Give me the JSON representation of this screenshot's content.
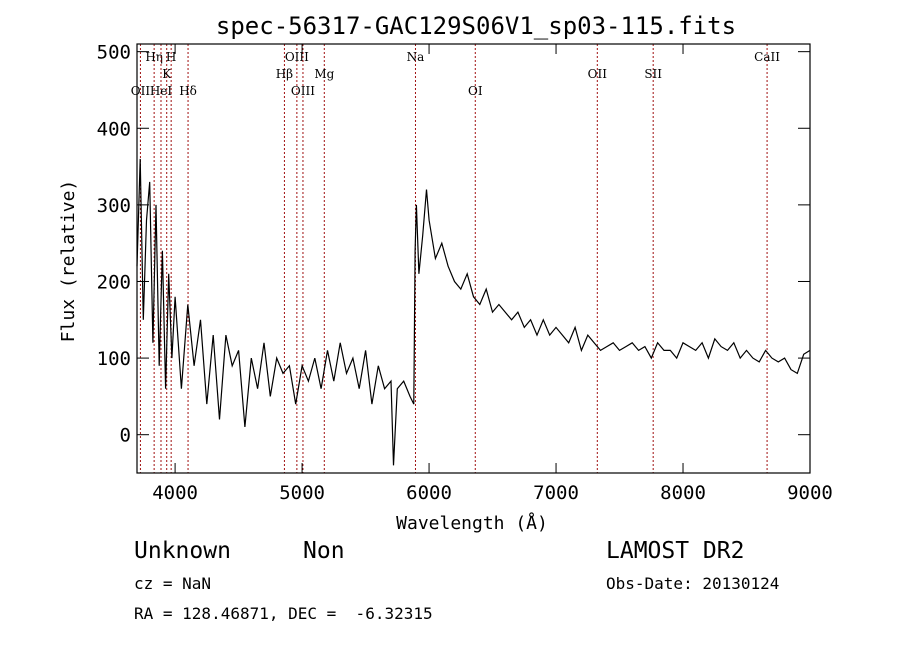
{
  "chart_data": {
    "type": "line",
    "title": "spec-56317-GAC129S06V1_sp03-115.fits",
    "xlabel": "Wavelength (Å)",
    "ylabel": "Flux (relative)",
    "xlim": [
      3700,
      9000
    ],
    "ylim": [
      -50,
      510
    ],
    "xticks": [
      4000,
      5000,
      6000,
      7000,
      8000,
      9000
    ],
    "yticks": [
      0,
      100,
      200,
      300,
      400,
      500
    ],
    "grid": false,
    "series": [
      {
        "x": [
          3700,
          3725,
          3750,
          3775,
          3800,
          3825,
          3850,
          3875,
          3900,
          3925,
          3950,
          3975,
          4000,
          4050,
          4100,
          4150,
          4200,
          4250,
          4300,
          4350,
          4400,
          4450,
          4500,
          4550,
          4600,
          4650,
          4700,
          4750,
          4800,
          4850,
          4900,
          4950,
          5000,
          5050,
          5100,
          5150,
          5200,
          5250,
          5300,
          5350,
          5400,
          5450,
          5500,
          5550,
          5600,
          5650,
          5700,
          5720,
          5750,
          5800,
          5850,
          5880,
          5890,
          5900,
          5920,
          5950,
          5980,
          6000,
          6050,
          6100,
          6150,
          6200,
          6250,
          6300,
          6350,
          6400,
          6450,
          6500,
          6550,
          6600,
          6650,
          6700,
          6750,
          6800,
          6850,
          6900,
          6950,
          7000,
          7050,
          7100,
          7150,
          7200,
          7250,
          7300,
          7350,
          7400,
          7450,
          7500,
          7550,
          7600,
          7650,
          7700,
          7750,
          7800,
          7850,
          7900,
          7950,
          8000,
          8050,
          8100,
          8150,
          8200,
          8250,
          8300,
          8350,
          8400,
          8450,
          8500,
          8550,
          8600,
          8650,
          8700,
          8750,
          8800,
          8850,
          8900,
          8950,
          9000
        ],
        "y": [
          220,
          360,
          150,
          280,
          330,
          120,
          300,
          90,
          240,
          60,
          210,
          100,
          180,
          60,
          170,
          90,
          150,
          40,
          130,
          20,
          130,
          90,
          110,
          10,
          100,
          60,
          120,
          50,
          100,
          80,
          90,
          40,
          90,
          70,
          100,
          60,
          110,
          70,
          120,
          80,
          100,
          60,
          110,
          40,
          90,
          60,
          70,
          -40,
          60,
          70,
          50,
          40,
          240,
          300,
          210,
          260,
          320,
          280,
          230,
          250,
          220,
          200,
          190,
          210,
          180,
          170,
          190,
          160,
          170,
          160,
          150,
          160,
          140,
          150,
          130,
          150,
          130,
          140,
          130,
          120,
          140,
          110,
          130,
          120,
          110,
          115,
          120,
          110,
          115,
          120,
          110,
          115,
          100,
          120,
          110,
          110,
          100,
          120,
          115,
          110,
          120,
          100,
          125,
          115,
          110,
          120,
          100,
          110,
          100,
          95,
          110,
          100,
          95,
          100,
          85,
          80,
          105,
          110
        ]
      }
    ],
    "lines": [
      {
        "label": "OII",
        "x": 3727,
        "row": 3
      },
      {
        "label": "Hη",
        "x": 3835,
        "row": 1
      },
      {
        "label": "HeI",
        "x": 3889,
        "row": 3
      },
      {
        "label": "K",
        "x": 3934,
        "row": 2
      },
      {
        "label": "H",
        "x": 3969,
        "row": 1
      },
      {
        "label": "Hδ",
        "x": 4102,
        "row": 3
      },
      {
        "label": "Hβ",
        "x": 4861,
        "row": 2
      },
      {
        "label": "OIII",
        "x": 4959,
        "row": 1
      },
      {
        "label": "OIII",
        "x": 5007,
        "row": 3
      },
      {
        "label": "Mg",
        "x": 5175,
        "row": 2
      },
      {
        "label": "Na",
        "x": 5893,
        "row": 1
      },
      {
        "label": "OI",
        "x": 6364,
        "row": 3
      },
      {
        "label": "OII",
        "x": 7325,
        "row": 2
      },
      {
        "label": "SII",
        "x": 7765,
        "row": 2
      },
      {
        "label": "CaII",
        "x": 8662,
        "row": 1
      }
    ]
  },
  "info": {
    "class_name": "Unknown",
    "subclass": "Non",
    "survey": "LAMOST DR2",
    "cz": "cz = NaN",
    "obs_date": "Obs-Date: 20130124",
    "coords": "RA = 128.46871, DEC =  -6.32315"
  }
}
